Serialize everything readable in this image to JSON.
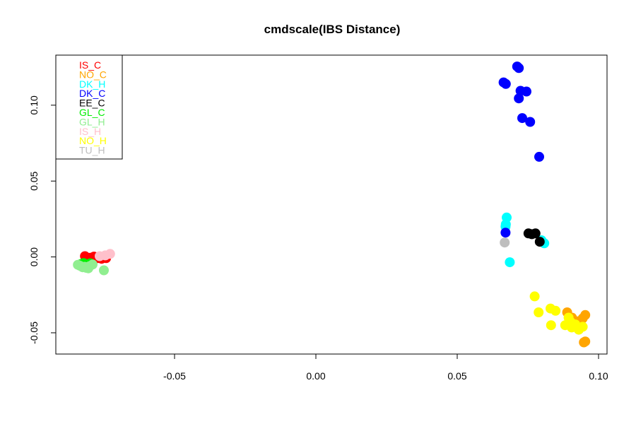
{
  "chart_data": {
    "type": "scatter",
    "title": "cmdscale(IBS Distance)",
    "xlabel": "",
    "ylabel": "",
    "xlim": [
      -0.092,
      0.103
    ],
    "ylim": [
      -0.064,
      0.133
    ],
    "xticks": [
      -0.05,
      0.0,
      0.05,
      0.1
    ],
    "xtick_labels": [
      "-0.05",
      "0.00",
      "0.05",
      "0.10"
    ],
    "yticks": [
      -0.05,
      0.0,
      0.05,
      0.1
    ],
    "ytick_labels": [
      "-0.05",
      "0.00",
      "0.05",
      "0.10"
    ],
    "grid": false,
    "legend_position": "top-left",
    "series": [
      {
        "name": "IS_C",
        "color": "#ff0000",
        "points": [
          [
            -0.0817,
            0.0005
          ],
          [
            -0.0798,
            -0.0005
          ],
          [
            -0.0785,
            0.0002
          ],
          [
            -0.0772,
            -0.0008
          ],
          [
            -0.0758,
            -0.0012
          ],
          [
            -0.0742,
            -0.0008
          ],
          [
            -0.0808,
            -0.0015
          ]
        ]
      },
      {
        "name": "NO_C",
        "color": "#ffa500",
        "points": [
          [
            0.0889,
            -0.0365
          ],
          [
            0.0906,
            -0.04
          ],
          [
            0.0925,
            -0.0425
          ],
          [
            0.0944,
            -0.0405
          ],
          [
            0.0953,
            -0.0383
          ],
          [
            0.0948,
            -0.0563
          ],
          [
            0.0953,
            -0.0557
          ],
          [
            0.0929,
            -0.046
          ]
        ]
      },
      {
        "name": "DK_H",
        "color": "#00ffff",
        "points": [
          [
            0.0675,
            0.026
          ],
          [
            0.0671,
            0.02
          ],
          [
            0.0686,
            -0.0035
          ],
          [
            0.0798,
            0.011
          ],
          [
            0.0808,
            0.009
          ],
          [
            0.0672,
            0.0215
          ]
        ]
      },
      {
        "name": "DK_C",
        "color": "#0000ff",
        "points": [
          [
            0.0712,
            0.1255
          ],
          [
            0.0718,
            0.1245
          ],
          [
            0.0664,
            0.115
          ],
          [
            0.0672,
            0.114
          ],
          [
            0.0724,
            0.1095
          ],
          [
            0.0745,
            0.109
          ],
          [
            0.0718,
            0.1045
          ],
          [
            0.073,
            0.0915
          ],
          [
            0.0758,
            0.089
          ],
          [
            0.079,
            0.066
          ],
          [
            0.0671,
            0.016
          ]
        ]
      },
      {
        "name": "EE_C",
        "color": "#000000",
        "points": [
          [
            0.0752,
            0.0155
          ],
          [
            0.0777,
            0.0155
          ],
          [
            0.0792,
            0.01
          ],
          [
            0.0764,
            0.015
          ]
        ]
      },
      {
        "name": "GL_C",
        "color": "#00ee00",
        "points": [
          [
            -0.0832,
            -0.0048
          ],
          [
            -0.0822,
            -0.004
          ],
          [
            -0.0812,
            -0.0055
          ],
          [
            -0.0798,
            -0.0042
          ]
        ]
      },
      {
        "name": "GL_H",
        "color": "#90ee90",
        "points": [
          [
            -0.0835,
            -0.0058
          ],
          [
            -0.0825,
            -0.0068
          ],
          [
            -0.0812,
            -0.0072
          ],
          [
            -0.08,
            -0.006
          ],
          [
            -0.079,
            -0.005
          ],
          [
            -0.0842,
            -0.0052
          ],
          [
            -0.0818,
            -0.0065
          ],
          [
            -0.075,
            -0.0088
          ],
          [
            -0.0805,
            -0.0075
          ]
        ]
      },
      {
        "name": "IS_H",
        "color": "#ffc0cb",
        "points": [
          [
            -0.0728,
            0.002
          ],
          [
            -0.0765,
            0.0005
          ],
          [
            -0.0745,
            0.001
          ]
        ]
      },
      {
        "name": "NO_H",
        "color": "#ffff00",
        "points": [
          [
            0.0774,
            -0.026
          ],
          [
            0.0788,
            -0.0365
          ],
          [
            0.083,
            -0.034
          ],
          [
            0.0848,
            -0.0355
          ],
          [
            0.0832,
            -0.045
          ],
          [
            0.0882,
            -0.045
          ],
          [
            0.0894,
            -0.04
          ],
          [
            0.0902,
            -0.043
          ],
          [
            0.0918,
            -0.0445
          ],
          [
            0.093,
            -0.048
          ],
          [
            0.0944,
            -0.046
          ],
          [
            0.0905,
            -0.0465
          ]
        ]
      },
      {
        "name": "TU_H",
        "color": "#bebebe",
        "points": [
          [
            0.0668,
            0.0095
          ]
        ]
      }
    ]
  }
}
